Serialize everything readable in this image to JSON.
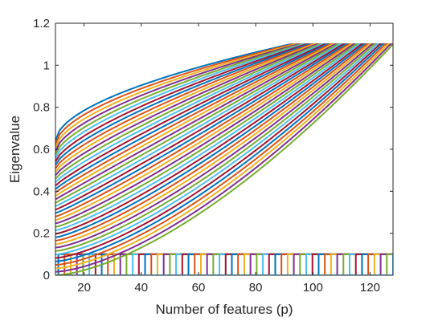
{
  "chart_data": {
    "type": "line",
    "title": "",
    "xlabel": "Number of features (p)",
    "ylabel": "Eigenvalue",
    "xlim": [
      10,
      128
    ],
    "ylim": [
      0,
      1.2
    ],
    "x_ticks": [
      20,
      40,
      60,
      80,
      100,
      120
    ],
    "y_ticks": [
      0,
      0.2,
      0.4,
      0.6,
      0.8,
      1,
      1.2
    ],
    "x_tick_labels": [
      "20",
      "40",
      "60",
      "80",
      "100",
      "120"
    ],
    "y_tick_labels": [
      "0",
      "0.2",
      "0.4",
      "0.6",
      "0.8",
      "1",
      "1.2"
    ],
    "grid": false,
    "legend": "none",
    "upper_level": 1.1,
    "lower_level": 0.1,
    "colors": [
      "#0072BD",
      "#D95319",
      "#EDB120",
      "#7E2F8E",
      "#77AC30",
      "#4DBEEE",
      "#A2142F"
    ],
    "upper_curves": {
      "description": "eigenvalue curves that rise and saturate at 1.1",
      "count": 40,
      "start_values_at_x10": {
        "first": 0.64,
        "last": 0.0
      },
      "saturation_x": {
        "first": 92,
        "last": 128
      }
    },
    "lower_curves": {
      "description": "eigenvalue curves that jump from 0 to 0.1 at successive feature counts",
      "count": 55,
      "jump_x": {
        "first": 11,
        "last": 128
      }
    }
  }
}
